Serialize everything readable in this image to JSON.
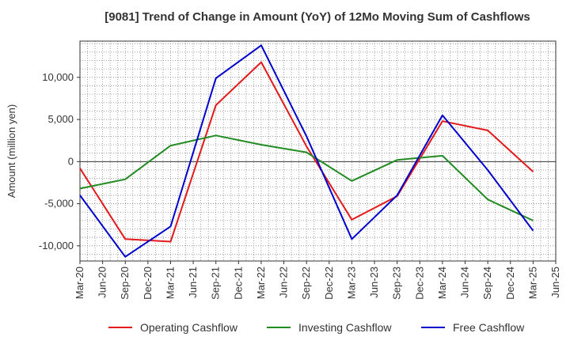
{
  "chart_data": {
    "type": "line",
    "title": "[9081]  Trend of Change in Amount (YoY) of 12Mo Moving Sum of Cashflows",
    "xlabel": "",
    "ylabel": "Amount (million yen)",
    "ylim": [
      -11800,
      14300
    ],
    "yticks": [
      -10000,
      -5000,
      0,
      5000,
      10000
    ],
    "ytick_labels": [
      "-10,000",
      "-5,000",
      "0",
      "5,000",
      "10,000"
    ],
    "x_tick_labels": [
      "Mar-20",
      "Jun-20",
      "Sep-20",
      "Dec-20",
      "Mar-21",
      "Jun-21",
      "Sep-21",
      "Dec-21",
      "Mar-22",
      "Jun-22",
      "Sep-22",
      "Dec-22",
      "Mar-23",
      "Jun-23",
      "Sep-23",
      "Dec-23",
      "Mar-24",
      "Jun-24",
      "Sep-24",
      "Dec-24",
      "Mar-25",
      "Jun-25"
    ],
    "categories": [
      "Mar-20",
      "Sep-20",
      "Mar-21",
      "Sep-21",
      "Mar-22",
      "Sep-22",
      "Mar-23",
      "Sep-23",
      "Mar-24",
      "Sep-24",
      "Mar-25"
    ],
    "legend_position": "bottom",
    "grid": true,
    "series": [
      {
        "name": "Operating Cashflow",
        "color": "#e31a1c",
        "values": [
          -800,
          -9200,
          -9500,
          6700,
          11800,
          1800,
          -6900,
          -4100,
          4800,
          3700,
          -1200
        ]
      },
      {
        "name": "Investing Cashflow",
        "color": "#228b22",
        "values": [
          -3200,
          -2100,
          1900,
          3100,
          2000,
          1100,
          -2300,
          200,
          700,
          -4500,
          -7000
        ]
      },
      {
        "name": "Free Cashflow",
        "color": "#0000cd",
        "values": [
          -4000,
          -11300,
          -7700,
          9900,
          13800,
          3000,
          -9200,
          -4000,
          5500,
          -1000,
          -8200
        ]
      }
    ]
  }
}
